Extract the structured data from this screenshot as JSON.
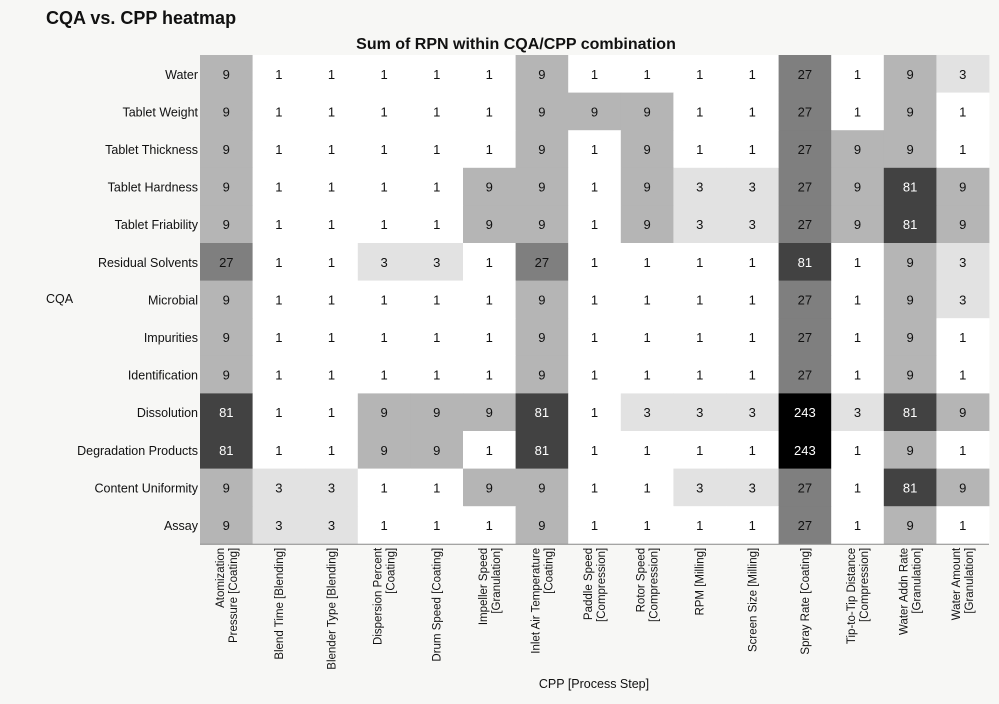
{
  "page": {
    "title": "CQA vs. CPP heatmap"
  },
  "chart_data": {
    "type": "heatmap",
    "title": "Sum of RPN within CQA/CPP combination",
    "xlabel": "CPP [Process Step]",
    "ylabel": "CQA",
    "colormap": "greys",
    "value_range": [
      1,
      243
    ],
    "rows": [
      "Water",
      "Tablet Weight",
      "Tablet Thickness",
      "Tablet Hardness",
      "Tablet Friability",
      "Residual Solvents",
      "Microbial",
      "Impurities",
      "Identification",
      "Dissolution",
      "Degradation Products",
      "Content Uniformity",
      "Assay"
    ],
    "columns": [
      [
        "Atomization",
        "Pressure [Coating]"
      ],
      [
        "Blend Time [Blending]"
      ],
      [
        "Blender Type [Blending]"
      ],
      [
        "Dispersion Percent",
        "[Coating]"
      ],
      [
        "Drum Speed [Coating]"
      ],
      [
        "Impeller Speed",
        "[Granulation]"
      ],
      [
        "Inlet Air Temperature",
        "[Coating]"
      ],
      [
        "Paddle Speed",
        "[Compression]"
      ],
      [
        "Rotor Speed",
        "[Compression]"
      ],
      [
        "RPM [Milling]"
      ],
      [
        "Screen Size [Milling]"
      ],
      [
        "Spray Rate [Coating]"
      ],
      [
        "Tip-to-Tip Distance",
        "[Compression]"
      ],
      [
        "Water Addn Rate",
        "[Granulation]"
      ],
      [
        "Water Amount",
        "[Granulation]"
      ]
    ],
    "values": [
      [
        9,
        1,
        1,
        1,
        1,
        1,
        9,
        1,
        1,
        1,
        1,
        27,
        1,
        9,
        3
      ],
      [
        9,
        1,
        1,
        1,
        1,
        1,
        9,
        9,
        9,
        1,
        1,
        27,
        1,
        9,
        1
      ],
      [
        9,
        1,
        1,
        1,
        1,
        1,
        9,
        1,
        9,
        1,
        1,
        27,
        9,
        9,
        1
      ],
      [
        9,
        1,
        1,
        1,
        1,
        9,
        9,
        1,
        9,
        3,
        3,
        27,
        9,
        81,
        9
      ],
      [
        9,
        1,
        1,
        1,
        1,
        9,
        9,
        1,
        9,
        3,
        3,
        27,
        9,
        81,
        9
      ],
      [
        27,
        1,
        1,
        3,
        3,
        1,
        27,
        1,
        1,
        1,
        1,
        81,
        1,
        9,
        3
      ],
      [
        9,
        1,
        1,
        1,
        1,
        1,
        9,
        1,
        1,
        1,
        1,
        27,
        1,
        9,
        3
      ],
      [
        9,
        1,
        1,
        1,
        1,
        1,
        9,
        1,
        1,
        1,
        1,
        27,
        1,
        9,
        1
      ],
      [
        9,
        1,
        1,
        1,
        1,
        1,
        9,
        1,
        1,
        1,
        1,
        27,
        1,
        9,
        1
      ],
      [
        81,
        1,
        1,
        9,
        9,
        9,
        81,
        1,
        3,
        3,
        3,
        243,
        3,
        81,
        9
      ],
      [
        81,
        1,
        1,
        9,
        9,
        1,
        81,
        1,
        1,
        1,
        1,
        243,
        1,
        9,
        1
      ],
      [
        9,
        3,
        3,
        1,
        1,
        9,
        9,
        1,
        1,
        3,
        3,
        27,
        1,
        81,
        9
      ],
      [
        9,
        3,
        3,
        1,
        1,
        1,
        9,
        1,
        1,
        1,
        1,
        27,
        1,
        9,
        1
      ]
    ]
  }
}
